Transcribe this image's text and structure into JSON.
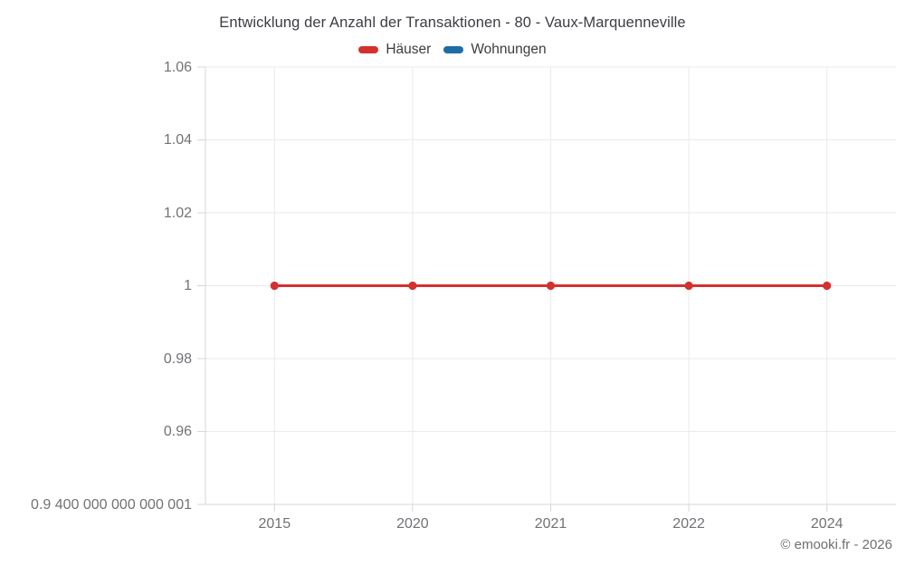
{
  "title": "Entwicklung der Anzahl der Transaktionen - 80 - Vaux-Marquenneville",
  "legend": {
    "items": [
      {
        "label": "Häuser",
        "color": "#d3312e"
      },
      {
        "label": "Wohnungen",
        "color": "#1c6ea4"
      }
    ]
  },
  "footer": {
    "credit": "© emooki.fr - 2026"
  },
  "colors": {
    "grid": "#eaeaea",
    "axis": "#d7d7d7",
    "tick_text": "#727277",
    "title_text": "#3c3c43",
    "series_red": "#d3312e",
    "series_blue": "#1c6ea4"
  },
  "chart_data": {
    "type": "line",
    "title": "Entwicklung der Anzahl der Transaktionen - 80 - Vaux-Marquenneville",
    "xlabel": "",
    "ylabel": "",
    "categories": [
      "2015",
      "2020",
      "2021",
      "2022",
      "2024"
    ],
    "series": [
      {
        "name": "Häuser",
        "color": "#d3312e",
        "values": [
          1,
          1,
          1,
          1,
          1
        ]
      },
      {
        "name": "Wohnungen",
        "color": "#1c6ea4",
        "values": []
      }
    ],
    "legend_entries": [
      "Häuser",
      "Wohnungen"
    ],
    "legend_position": "top",
    "grid": true,
    "ylim": [
      0.94,
      1.06
    ],
    "ytick_values": [
      1.06,
      1.04,
      1.02,
      1,
      0.98,
      0.96,
      0.94
    ],
    "ytick_labels": [
      "1.06",
      "1.04",
      "1.02",
      "1",
      "0.98",
      "0.96",
      "0.9 400 000 000 000 001"
    ]
  }
}
